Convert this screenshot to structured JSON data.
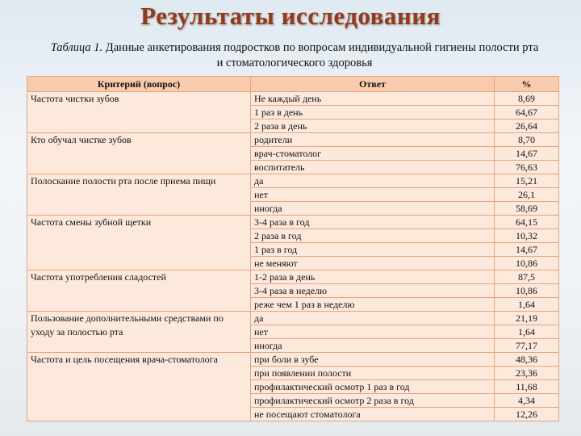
{
  "title": "Результаты исследования",
  "subtitle": {
    "label": "Таблица 1.",
    "text": "Данные анкетирования подростков по вопросам индивидуальной гигиены полости рта и стоматологического здоровья"
  },
  "table": {
    "header": [
      "Критерий (вопрос)",
      "Ответ",
      "%"
    ],
    "groups": [
      {
        "criterion": "Частота чистки зубов",
        "answers": [
          [
            "Не каждый день",
            "8,69"
          ],
          [
            "1 раз в день",
            "64,67"
          ],
          [
            "2 раза в день",
            "26,64"
          ]
        ]
      },
      {
        "criterion": "Кто обучал чистке зубов",
        "answers": [
          [
            "родители",
            "8,70"
          ],
          [
            "врач-стоматолог",
            "14,67"
          ],
          [
            "воспитатель",
            "76,63"
          ]
        ]
      },
      {
        "criterion": "Полоскание полости рта после приема пищи",
        "answers": [
          [
            "да",
            "15,21"
          ],
          [
            "нет",
            "26,1"
          ],
          [
            "иногда",
            "58,69"
          ]
        ]
      },
      {
        "criterion": "Частота смены зубной щетки",
        "answers": [
          [
            "3-4 раза в год",
            "64,15"
          ],
          [
            "2 раза в год",
            "10,32"
          ],
          [
            "1 раз в год",
            "14,67"
          ],
          [
            "не меняют",
            "10,86"
          ]
        ]
      },
      {
        "criterion": "Частота употребления сладостей",
        "answers": [
          [
            "1-2 раза в день",
            "87,5"
          ],
          [
            "3-4 раза в неделю",
            "10,86"
          ],
          [
            "реже чем 1 раз в неделю",
            "1,64"
          ]
        ]
      },
      {
        "criterion": "Пользование дополнительными средствами по уходу за полостью рта",
        "answers": [
          [
            "да",
            "21,19"
          ],
          [
            "нет",
            "1,64"
          ],
          [
            "иногда",
            "77,17"
          ]
        ]
      },
      {
        "criterion": "Частота и цель посещения врача-стоматолога",
        "answers": [
          [
            "при боли в зубе",
            "48,36"
          ],
          [
            "при появлении полости",
            "23,36"
          ],
          [
            "профилактический осмотр 1 раз в год",
            "11,68"
          ],
          [
            "профилактический осмотр 2 раза в год",
            "4,34"
          ],
          [
            "не посещают стоматолога",
            "12,26"
          ]
        ]
      }
    ]
  }
}
